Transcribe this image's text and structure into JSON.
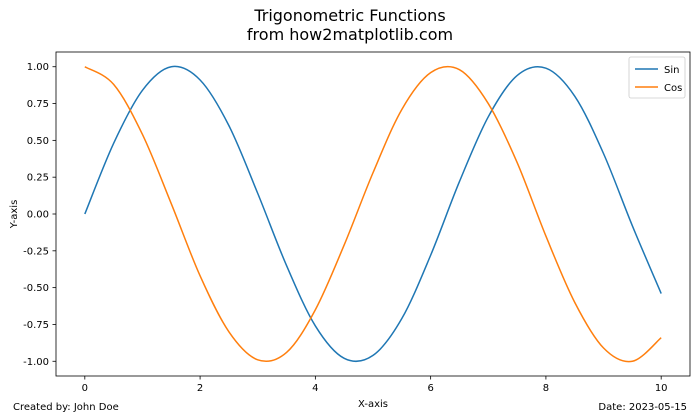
{
  "chart_data": {
    "type": "line",
    "title": "Trigonometric Functions",
    "subtitle": "from how2matplotlib.com",
    "xlabel": "X-axis",
    "ylabel": "Y-axis",
    "xlim": [
      -0.5,
      10.5
    ],
    "ylim": [
      -1.1,
      1.1
    ],
    "x_ticks": [
      0,
      2,
      4,
      6,
      8,
      10
    ],
    "x_tick_labels": [
      "0",
      "2",
      "4",
      "6",
      "8",
      "10"
    ],
    "y_ticks": [
      1.0,
      0.75,
      0.5,
      0.25,
      0.0,
      -0.25,
      -0.5,
      -0.75,
      -1.0
    ],
    "y_tick_labels": [
      "1.00",
      "0.75",
      "0.50",
      "0.25",
      "0.00",
      "-0.25",
      "-0.50",
      "-0.75",
      "-1.00"
    ],
    "grid": false,
    "legend_position": "top-right",
    "x": [
      0,
      0.5,
      1,
      1.5,
      2,
      2.5,
      3,
      3.5,
      4,
      4.5,
      5,
      5.5,
      6,
      6.5,
      7,
      7.5,
      8,
      8.5,
      9,
      9.5,
      10
    ],
    "series": [
      {
        "name": "Sin",
        "color": "#1f77b4",
        "values": [
          0.0,
          0.48,
          0.84,
          1.0,
          0.91,
          0.6,
          0.14,
          -0.35,
          -0.76,
          -0.98,
          -0.96,
          -0.71,
          -0.28,
          0.22,
          0.66,
          0.94,
          0.99,
          0.8,
          0.41,
          -0.08,
          -0.54
        ]
      },
      {
        "name": "Cos",
        "color": "#ff7f0e",
        "values": [
          1.0,
          0.88,
          0.54,
          0.07,
          -0.42,
          -0.8,
          -0.99,
          -0.94,
          -0.65,
          -0.21,
          0.28,
          0.71,
          0.96,
          0.98,
          0.75,
          0.35,
          -0.15,
          -0.6,
          -0.91,
          -1.0,
          -0.84
        ]
      }
    ]
  },
  "footer": {
    "left_text": "Created by: John Doe",
    "right_text": "Date: 2023-05-15"
  }
}
